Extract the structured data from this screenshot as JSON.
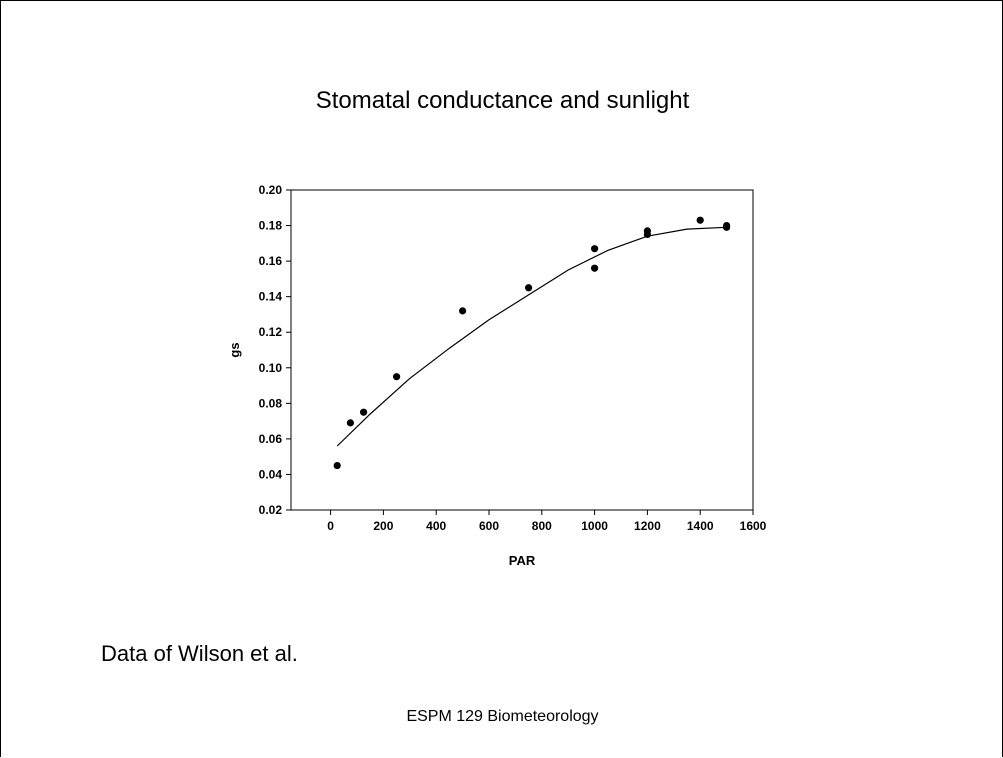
{
  "slide": {
    "title": "Stomatal conductance and sunlight",
    "caption": "Data of Wilson et al.",
    "footer": "ESPM 129 Biometeorology"
  },
  "chart_data": {
    "type": "scatter",
    "title": "Stomatal conductance and sunlight",
    "xlabel": "PAR",
    "ylabel": "gs",
    "xlim": [
      -150,
      1600
    ],
    "ylim": [
      0.02,
      0.2
    ],
    "xticks": [
      0,
      200,
      400,
      600,
      800,
      1000,
      1200,
      1400,
      1600
    ],
    "yticks": [
      0.02,
      0.04,
      0.06,
      0.08,
      0.1,
      0.12,
      0.14,
      0.16,
      0.18,
      0.2
    ],
    "grid": false,
    "legend": "none",
    "points": {
      "x": [
        25,
        75,
        125,
        250,
        500,
        750,
        1000,
        1000,
        1200,
        1200,
        1400,
        1500,
        1500
      ],
      "y": [
        0.045,
        0.069,
        0.075,
        0.095,
        0.132,
        0.145,
        0.167,
        0.156,
        0.175,
        0.177,
        0.183,
        0.179,
        0.18
      ]
    },
    "fit_curve": {
      "x": [
        25,
        150,
        300,
        450,
        600,
        750,
        900,
        1050,
        1200,
        1350,
        1500
      ],
      "y": [
        0.056,
        0.074,
        0.094,
        0.111,
        0.127,
        0.141,
        0.155,
        0.166,
        0.174,
        0.178,
        0.179
      ]
    },
    "colors": {
      "marker": "#000000",
      "line": "#000000"
    }
  }
}
